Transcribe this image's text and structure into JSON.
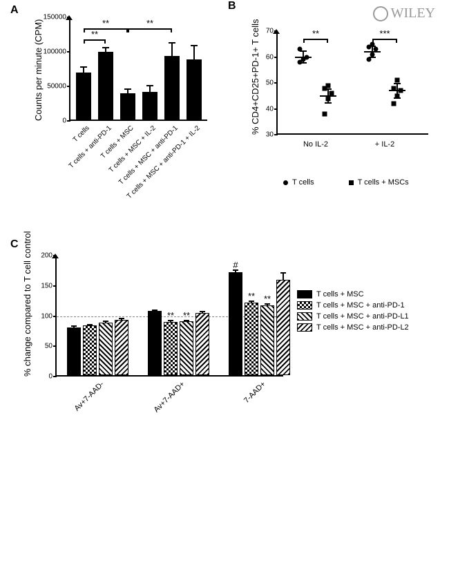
{
  "watermark": "WILEY",
  "panelA": {
    "label": "A",
    "type": "bar",
    "ylabel": "Counts per minute (CPM)",
    "ylim": [
      0,
      150000
    ],
    "yticks": [
      0,
      50000,
      100000,
      150000
    ],
    "bg": "#ffffff",
    "bar_color": "#000000",
    "categories": [
      "T cells",
      "T cells + anti-PD-1",
      "T cells + MSC",
      "T cells + MSC + IL-2",
      "T cells + MSC + anti-PD-1",
      "T cells + MSC + anti-PD-1 + IL-2"
    ],
    "values": [
      68000,
      98000,
      38000,
      40000,
      92000,
      87000
    ],
    "errors": [
      9000,
      7000,
      7000,
      10000,
      20000,
      21000
    ],
    "sig": [
      {
        "from": 0,
        "to": 1,
        "text": "**",
        "y": 118000
      },
      {
        "from": 0,
        "to": 2,
        "text": "**",
        "y": 134000
      },
      {
        "from": 2,
        "to": 4,
        "text": "**",
        "y": 134000
      }
    ]
  },
  "panelB": {
    "label": "B",
    "type": "scatter",
    "ylabel": "% CD4+CD25+PD-1+ T cells",
    "ylim": [
      30,
      70
    ],
    "yticks": [
      30,
      40,
      50,
      60,
      70
    ],
    "groups": [
      "No IL-2",
      "+ IL-2"
    ],
    "series": [
      {
        "name": "T cells",
        "marker": "circle",
        "data": {
          "No IL-2": [
            58,
            59,
            60,
            63
          ],
          "+ IL-2": [
            59,
            61,
            63,
            64,
            65
          ]
        },
        "mean": {
          "No IL-2": 60,
          "+ IL-2": 62
        },
        "err": {
          "No IL-2": 2.5,
          "+ IL-2": 2.5
        }
      },
      {
        "name": "T cells + MSCs",
        "marker": "square",
        "data": {
          "No IL-2": [
            38,
            44,
            46,
            48,
            49
          ],
          "+ IL-2": [
            42,
            45,
            47,
            48,
            51
          ]
        },
        "mean": {
          "No IL-2": 45,
          "+ IL-2": 47
        },
        "err": {
          "No IL-2": 3,
          "+ IL-2": 3
        }
      }
    ],
    "sig": [
      {
        "group": "No IL-2",
        "text": "**",
        "y": 67
      },
      {
        "group": "+ IL-2",
        "text": "***",
        "y": 67
      }
    ]
  },
  "panelC": {
    "label": "C",
    "type": "grouped-bar",
    "ylabel": "% change compared to T cell control",
    "ylim": [
      0,
      200
    ],
    "yticks": [
      0,
      50,
      100,
      150,
      200
    ],
    "ref": 100,
    "groups": [
      "Av+7-AAD-",
      "Av+7-AAD+",
      "7-AAD+"
    ],
    "series": [
      {
        "name": "T cells + MSC",
        "patternClass": "fill-solid"
      },
      {
        "name": "T cells + MSC + anti-PD-1",
        "patternClass": "fill-check"
      },
      {
        "name": "T cells + MSC + anti-PD-L1",
        "patternClass": "fill-diag1"
      },
      {
        "name": "T cells + MSC + anti-PD-L2",
        "patternClass": "fill-diag2"
      }
    ],
    "values": {
      "Av+7-AAD-": [
        79,
        82,
        87,
        92
      ],
      "Av+7-AAD+": [
        106,
        88,
        89,
        103
      ],
      "7-AAD+": [
        170,
        120,
        115,
        158
      ]
    },
    "errors": {
      "Av+7-AAD-": [
        3,
        3,
        3,
        3
      ],
      "Av+7-AAD+": [
        3,
        3,
        3,
        3
      ],
      "7-AAD+": [
        5,
        4,
        4,
        12
      ]
    },
    "sig": {
      "Av+7-AAD+": {
        "1": "**",
        "2": "**"
      },
      "7-AAD+": {
        "0": "#",
        "1": "**",
        "2": "**"
      }
    }
  }
}
